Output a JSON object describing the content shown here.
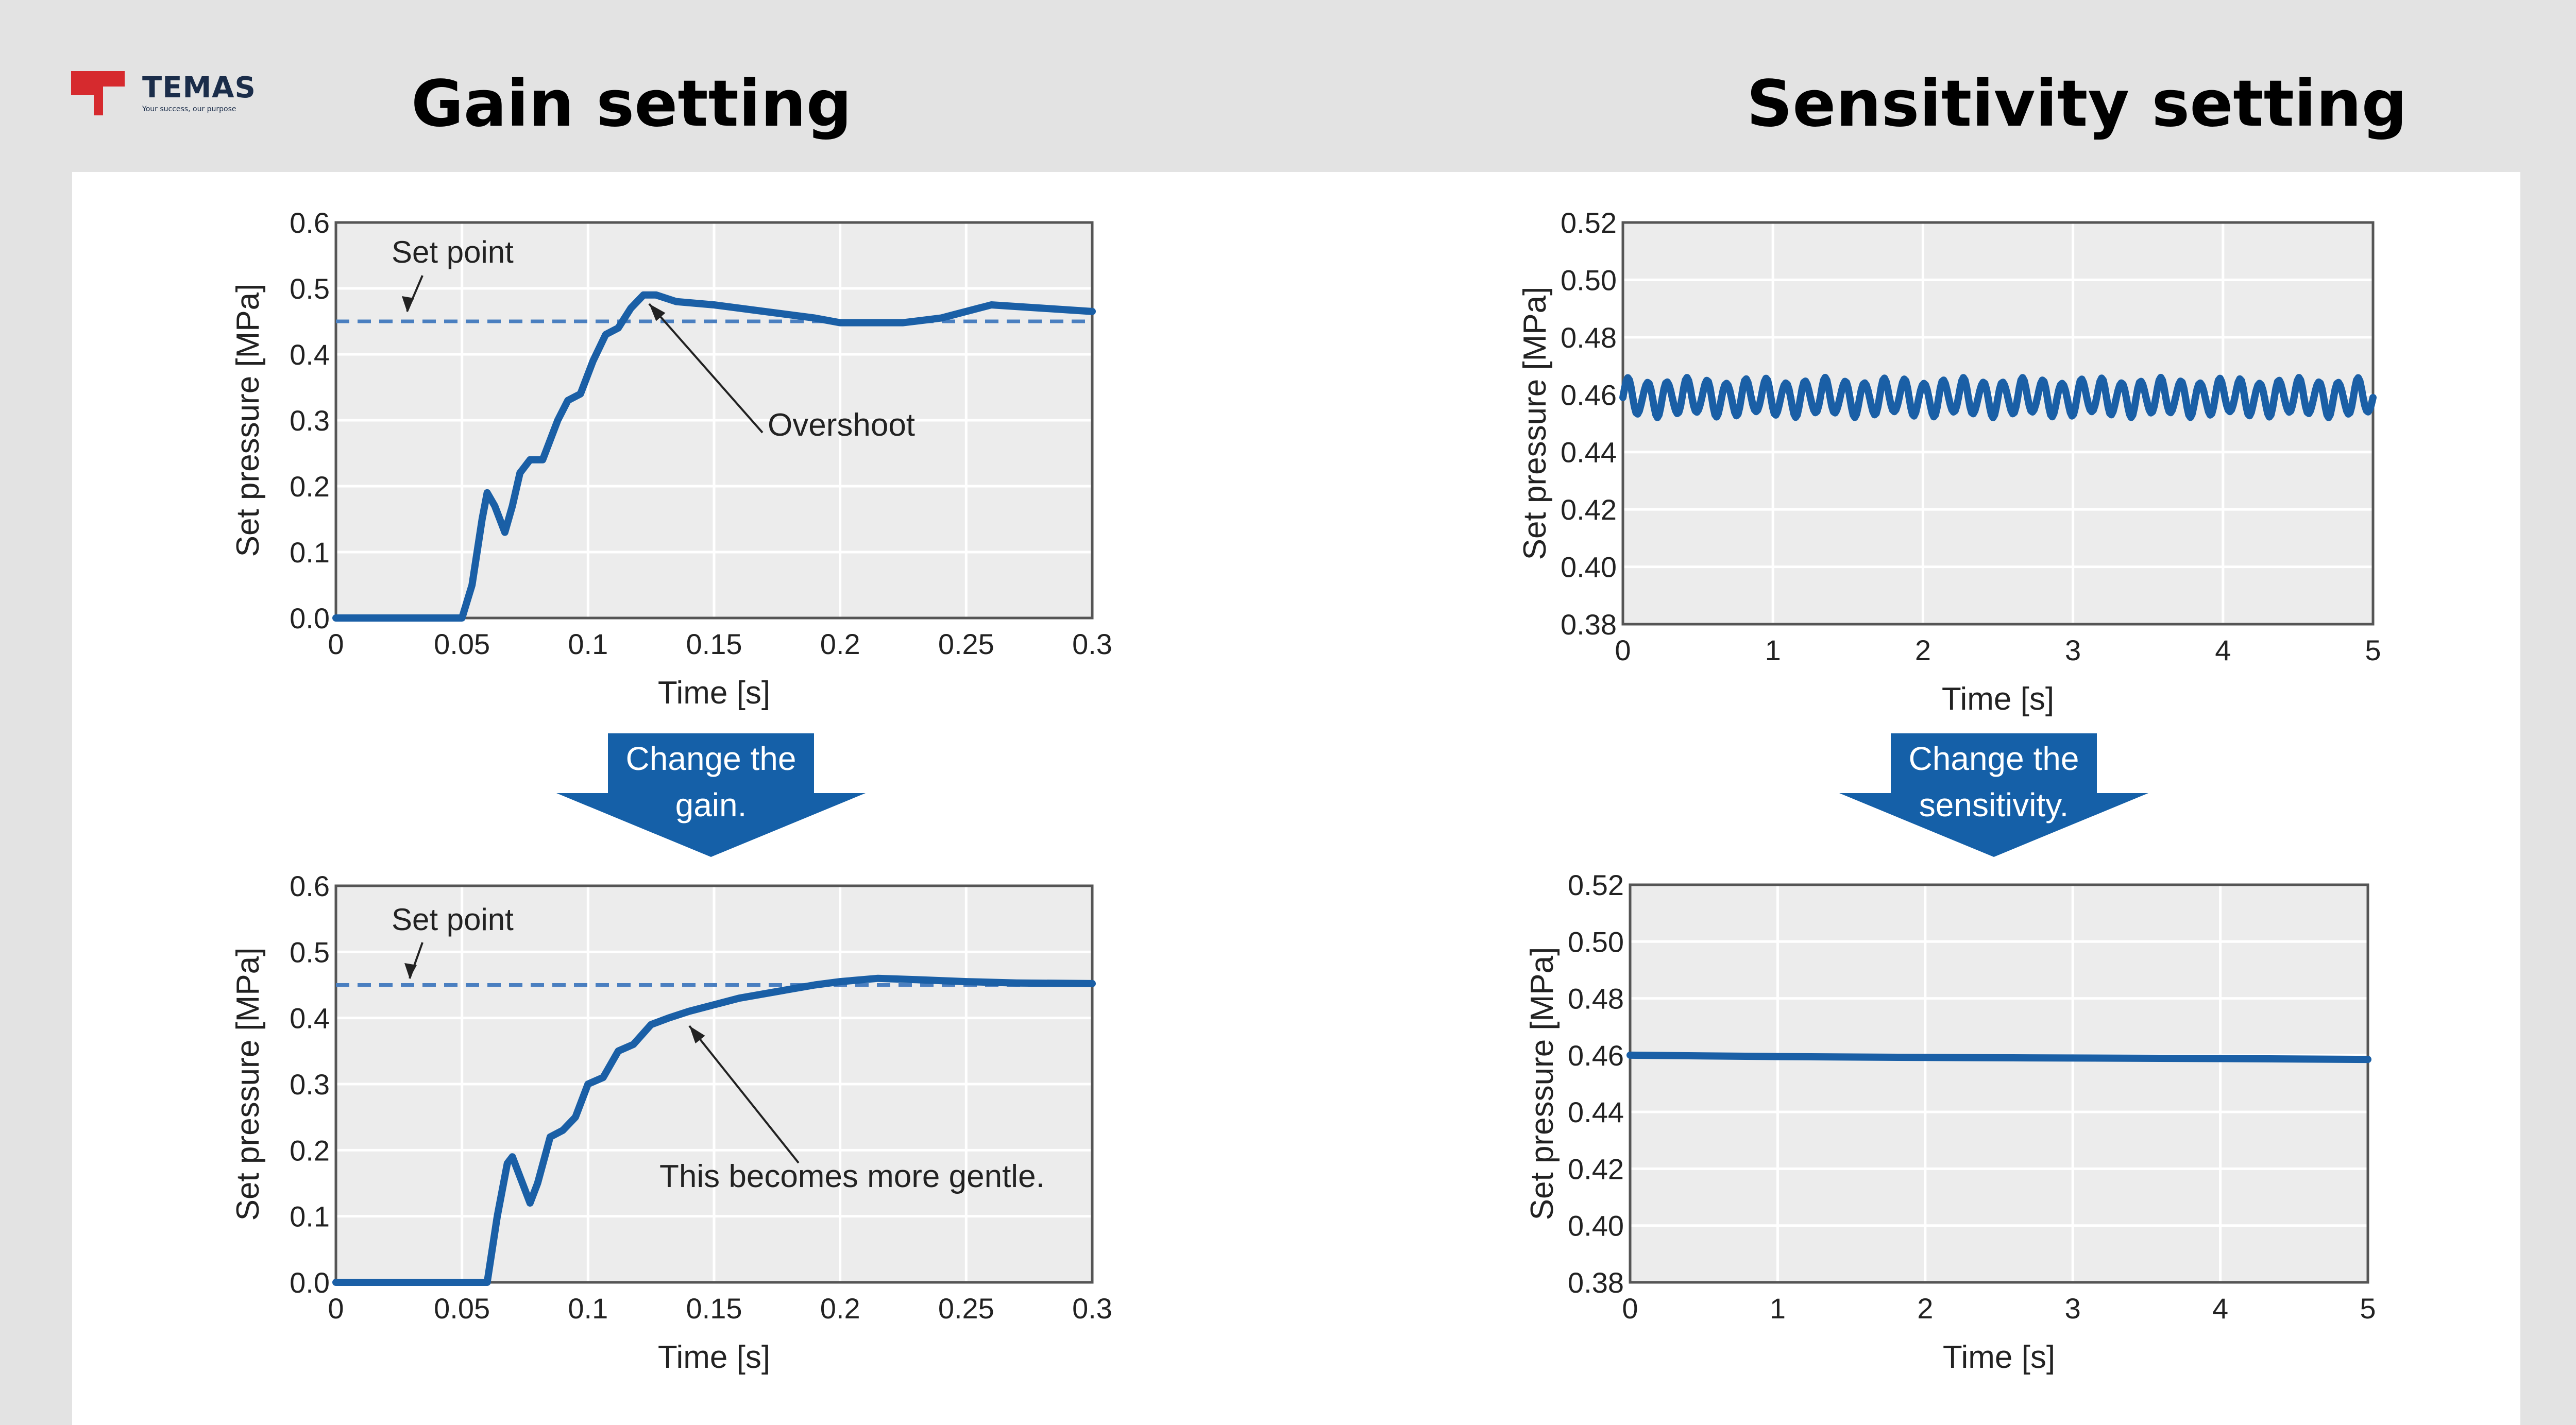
{
  "brand": {
    "name": "TEMAS",
    "tagline": "Your success, our purpose",
    "colors": {
      "mark": "#d62a2e",
      "text": "#1b2d4a"
    }
  },
  "headings": {
    "gain": "Gain setting",
    "sensitivity": "Sensitivity setting"
  },
  "arrows": {
    "gain": [
      "Change the",
      "gain."
    ],
    "sensitivity": [
      "Change the",
      "sensitivity."
    ]
  },
  "colors": {
    "line": "#1a5fa6",
    "arrow": "#1560a8",
    "plot_bg": "#ececec",
    "grid": "#ffffff"
  },
  "chart_data": [
    {
      "id": "gain_before",
      "type": "line",
      "xlabel": "Time [s]",
      "ylabel": "Set pressure [MPa]",
      "xlim": [
        0,
        0.3
      ],
      "ylim": [
        0,
        0.6
      ],
      "xticks": [
        "0",
        "0.05",
        "0.1",
        "0.15",
        "0.2",
        "0.25",
        "0.3"
      ],
      "yticks": [
        "0.0",
        "0.1",
        "0.2",
        "0.3",
        "0.4",
        "0.5",
        "0.6"
      ],
      "grid": true,
      "reference": {
        "label": "Set point",
        "y": 0.45,
        "style": "dashed"
      },
      "annotations": [
        {
          "text": "Overshoot",
          "x": 0.125,
          "y": 0.49
        }
      ],
      "series": [
        {
          "x": [
            0,
            0.035,
            0.05,
            0.054,
            0.058,
            0.06,
            0.063,
            0.067,
            0.07,
            0.073,
            0.077,
            0.082,
            0.088,
            0.092,
            0.097,
            0.102,
            0.107,
            0.112,
            0.117,
            0.122,
            0.127,
            0.135,
            0.15,
            0.17,
            0.19,
            0.2,
            0.21,
            0.225,
            0.24,
            0.245,
            0.26,
            0.28,
            0.3
          ],
          "y": [
            0.0,
            0.0,
            0.0,
            0.05,
            0.15,
            0.19,
            0.17,
            0.13,
            0.17,
            0.22,
            0.24,
            0.24,
            0.3,
            0.33,
            0.34,
            0.39,
            0.43,
            0.44,
            0.47,
            0.49,
            0.49,
            0.48,
            0.475,
            0.465,
            0.455,
            0.448,
            0.448,
            0.448,
            0.455,
            0.46,
            0.475,
            0.47,
            0.465
          ]
        }
      ]
    },
    {
      "id": "gain_after",
      "type": "line",
      "xlabel": "Time [s]",
      "ylabel": "Set pressure [MPa]",
      "xlim": [
        0,
        0.3
      ],
      "ylim": [
        0,
        0.6
      ],
      "xticks": [
        "0",
        "0.05",
        "0.1",
        "0.15",
        "0.2",
        "0.25",
        "0.3"
      ],
      "yticks": [
        "0.0",
        "0.1",
        "0.2",
        "0.3",
        "0.4",
        "0.5",
        "0.6"
      ],
      "grid": true,
      "reference": {
        "label": "Set point",
        "y": 0.45,
        "style": "dashed"
      },
      "annotations": [
        {
          "text": "This becomes more gentle.",
          "x": 0.14,
          "y": 0.4
        }
      ],
      "series": [
        {
          "x": [
            0,
            0.04,
            0.06,
            0.064,
            0.068,
            0.07,
            0.074,
            0.077,
            0.08,
            0.085,
            0.09,
            0.095,
            0.1,
            0.106,
            0.112,
            0.118,
            0.125,
            0.132,
            0.14,
            0.15,
            0.16,
            0.175,
            0.19,
            0.2,
            0.215,
            0.23,
            0.25,
            0.27,
            0.3
          ],
          "y": [
            0.0,
            0.0,
            0.0,
            0.1,
            0.18,
            0.19,
            0.15,
            0.12,
            0.15,
            0.22,
            0.23,
            0.25,
            0.3,
            0.31,
            0.35,
            0.36,
            0.39,
            0.4,
            0.41,
            0.42,
            0.43,
            0.44,
            0.45,
            0.455,
            0.46,
            0.458,
            0.455,
            0.453,
            0.452
          ]
        }
      ]
    },
    {
      "id": "sens_before",
      "type": "line",
      "xlabel": "Time [s]",
      "ylabel": "Set pressure [MPa]",
      "xlim": [
        0,
        5
      ],
      "ylim": [
        0.38,
        0.52
      ],
      "xticks": [
        "0",
        "1",
        "2",
        "3",
        "4",
        "5"
      ],
      "yticks": [
        "0.38",
        "0.40",
        "0.42",
        "0.44",
        "0.46",
        "0.48",
        "0.50",
        "0.52"
      ],
      "grid": true,
      "series": [
        {
          "pattern": "oscillation",
          "center": 0.459,
          "amplitude": 0.007,
          "cycles": 38,
          "x_start": 0,
          "x_end": 5
        }
      ]
    },
    {
      "id": "sens_after",
      "type": "line",
      "xlabel": "Time [s]",
      "ylabel": "Set pressure [MPa]",
      "xlim": [
        0,
        5
      ],
      "ylim": [
        0.38,
        0.52
      ],
      "xticks": [
        "0",
        "1",
        "2",
        "3",
        "4",
        "5"
      ],
      "yticks": [
        "0.38",
        "0.40",
        "0.42",
        "0.44",
        "0.46",
        "0.48",
        "0.50",
        "0.52"
      ],
      "grid": true,
      "series": [
        {
          "x": [
            0,
            1,
            2,
            3,
            4,
            5
          ],
          "y": [
            0.46,
            0.4595,
            0.4592,
            0.459,
            0.4588,
            0.4585
          ]
        }
      ]
    }
  ]
}
